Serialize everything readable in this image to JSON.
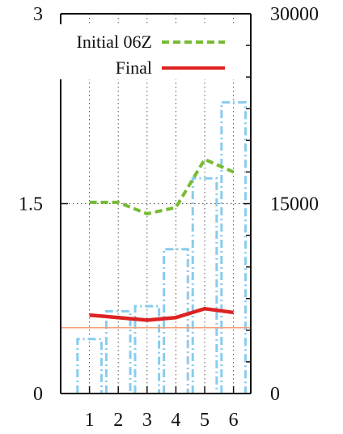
{
  "chart_data": {
    "type": "line",
    "x": [
      1,
      2,
      3,
      4,
      5,
      6
    ],
    "xticks": [
      "1",
      "2",
      "3",
      "4",
      "5",
      "6"
    ],
    "xlim": [
      0,
      6.6
    ],
    "y_left": {
      "ylim": [
        0,
        3
      ],
      "ticks": [
        "0",
        "1.5",
        "3"
      ]
    },
    "y_right": {
      "ylim": [
        0,
        30000
      ],
      "ticks": [
        "0",
        "15000",
        "30000"
      ]
    },
    "grid": true,
    "legend_position": "top",
    "series": [
      {
        "name": "Initial 06Z",
        "axis": "left",
        "style": "dashed",
        "color": "#77bb33",
        "values": [
          1.51,
          1.51,
          1.42,
          1.47,
          1.85,
          1.75
        ]
      },
      {
        "name": "Final",
        "axis": "left",
        "style": "solid",
        "color": "#dd2222",
        "values": [
          0.62,
          0.6,
          0.58,
          0.6,
          0.67,
          0.64
        ]
      }
    ],
    "bars": {
      "axis": "right",
      "style": "dash-dot",
      "color": "#88ccee",
      "intervals": [
        {
          "from": 0.5,
          "to": 1.5,
          "value": 4300
        },
        {
          "from": 1.5,
          "to": 2.5,
          "value": 6500
        },
        {
          "from": 2.5,
          "to": 3.5,
          "value": 6900
        },
        {
          "from": 3.5,
          "to": 4.5,
          "value": 11400
        },
        {
          "from": 4.5,
          "to": 5.5,
          "value": 17000
        },
        {
          "from": 5.5,
          "to": 6.5,
          "value": 23000
        }
      ]
    },
    "reference_line": {
      "axis": "left",
      "value": 0.52,
      "color": "#f2a07a"
    }
  }
}
